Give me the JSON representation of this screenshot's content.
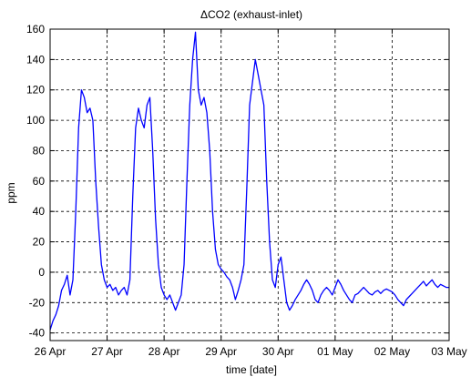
{
  "chart_data": {
    "type": "line",
    "title": "ΔCO2 (exhaust-inlet)",
    "xlabel": "time [date]",
    "ylabel": "ppm",
    "x_tick_labels": [
      "26 Apr",
      "27 Apr",
      "28 Apr",
      "29 Apr",
      "30 Apr",
      "01 May",
      "02 May",
      "03 May"
    ],
    "xlim": [
      "26 Apr",
      "03 May"
    ],
    "ylim": [
      -45,
      160
    ],
    "y_ticks": [
      -40,
      -20,
      0,
      20,
      40,
      60,
      80,
      100,
      120,
      140,
      160
    ],
    "grid": true,
    "line_color": "#0000ff",
    "series": [
      {
        "x": [
          "26 Apr 00:00",
          "26 Apr 01:12",
          "26 Apr 02:24",
          "26 Apr 03:36",
          "26 Apr 04:48",
          "26 Apr 06:00",
          "26 Apr 07:12",
          "26 Apr 08:24",
          "26 Apr 09:36",
          "26 Apr 10:48",
          "26 Apr 12:00",
          "26 Apr 13:12",
          "26 Apr 14:24",
          "26 Apr 15:36",
          "26 Apr 16:48",
          "26 Apr 18:00",
          "26 Apr 19:12",
          "26 Apr 20:24",
          "26 Apr 21:36",
          "26 Apr 22:48",
          "27 Apr 00:00",
          "27 Apr 01:12",
          "27 Apr 02:24",
          "27 Apr 03:36",
          "27 Apr 04:48",
          "27 Apr 06:00",
          "27 Apr 07:12",
          "27 Apr 08:24",
          "27 Apr 09:36",
          "27 Apr 10:48",
          "27 Apr 12:00",
          "27 Apr 13:12",
          "27 Apr 14:24",
          "27 Apr 15:36",
          "27 Apr 16:48",
          "27 Apr 18:00",
          "27 Apr 19:12",
          "27 Apr 20:24",
          "27 Apr 21:36",
          "27 Apr 22:48",
          "28 Apr 00:00",
          "28 Apr 01:12",
          "28 Apr 02:24",
          "28 Apr 03:36",
          "28 Apr 04:48",
          "28 Apr 06:00",
          "28 Apr 07:12",
          "28 Apr 08:24",
          "28 Apr 09:36",
          "28 Apr 10:48",
          "28 Apr 12:00",
          "28 Apr 13:12",
          "28 Apr 14:24",
          "28 Apr 15:36",
          "28 Apr 16:48",
          "28 Apr 18:00",
          "28 Apr 19:12",
          "28 Apr 20:24",
          "28 Apr 21:36",
          "28 Apr 22:48",
          "29 Apr 00:00",
          "29 Apr 01:12",
          "29 Apr 02:24",
          "29 Apr 03:36",
          "29 Apr 04:48",
          "29 Apr 06:00",
          "29 Apr 07:12",
          "29 Apr 08:24",
          "29 Apr 09:36",
          "29 Apr 10:48",
          "29 Apr 12:00",
          "29 Apr 13:12",
          "29 Apr 14:24",
          "29 Apr 15:36",
          "29 Apr 16:48",
          "29 Apr 18:00",
          "29 Apr 19:12",
          "29 Apr 20:24",
          "29 Apr 21:36",
          "29 Apr 22:48",
          "30 Apr 00:00",
          "30 Apr 01:12",
          "30 Apr 02:24",
          "30 Apr 03:36",
          "30 Apr 04:48",
          "30 Apr 06:00",
          "30 Apr 07:12",
          "30 Apr 08:24",
          "30 Apr 09:36",
          "30 Apr 10:48",
          "30 Apr 12:00",
          "30 Apr 13:12",
          "30 Apr 14:24",
          "30 Apr 15:36",
          "30 Apr 16:48",
          "30 Apr 18:00",
          "30 Apr 19:12",
          "30 Apr 20:24",
          "30 Apr 21:36",
          "30 Apr 22:48",
          "01 May 00:00",
          "01 May 01:12",
          "01 May 02:24",
          "01 May 03:36",
          "01 May 04:48",
          "01 May 06:00",
          "01 May 07:12",
          "01 May 08:24",
          "01 May 09:36",
          "01 May 10:48",
          "01 May 12:00",
          "01 May 13:12",
          "01 May 14:24",
          "01 May 15:36",
          "01 May 16:48",
          "01 May 18:00",
          "01 May 19:12",
          "01 May 20:24",
          "01 May 21:36",
          "01 May 22:48",
          "02 May 00:00",
          "02 May 01:12",
          "02 May 02:24",
          "02 May 03:36",
          "02 May 04:48",
          "02 May 06:00",
          "02 May 07:12",
          "02 May 08:24",
          "02 May 09:36",
          "02 May 10:48",
          "02 May 12:00",
          "02 May 13:12",
          "02 May 14:24",
          "02 May 15:36",
          "02 May 16:48",
          "02 May 18:00",
          "02 May 19:12",
          "02 May 20:24",
          "02 May 21:36",
          "02 May 22:48",
          "03 May 00:00"
        ],
        "y": [
          -38,
          -32,
          -28,
          -22,
          -12,
          -8,
          -2,
          -15,
          -5,
          40,
          95,
          120,
          115,
          105,
          108,
          100,
          60,
          30,
          5,
          -5,
          -10,
          -8,
          -12,
          -10,
          -15,
          -12,
          -10,
          -15,
          -5,
          50,
          95,
          108,
          100,
          95,
          110,
          115,
          80,
          35,
          5,
          -10,
          -15,
          -18,
          -15,
          -20,
          -25,
          -20,
          -15,
          5,
          60,
          110,
          140,
          158,
          120,
          110,
          115,
          105,
          80,
          40,
          15,
          5,
          2,
          0,
          -3,
          -5,
          -10,
          -18,
          -12,
          -5,
          5,
          55,
          110,
          125,
          140,
          130,
          120,
          110,
          60,
          20,
          -5,
          -10,
          5,
          10,
          -5,
          -20,
          -25,
          -22,
          -18,
          -15,
          -12,
          -8,
          -5,
          -8,
          -12,
          -18,
          -20,
          -15,
          -12,
          -10,
          -12,
          -15,
          -10,
          -5,
          -8,
          -12,
          -15,
          -18,
          -20,
          -15,
          -14,
          -12,
          -10,
          -12,
          -14,
          -15,
          -13,
          -12,
          -14,
          -12,
          -11,
          -12,
          -13,
          -15,
          -18,
          -20,
          -22,
          -18,
          -16,
          -14,
          -12,
          -10,
          -8,
          -6,
          -9,
          -7,
          -5,
          -8,
          -10,
          -8,
          -9,
          -10,
          -10
        ]
      }
    ]
  }
}
